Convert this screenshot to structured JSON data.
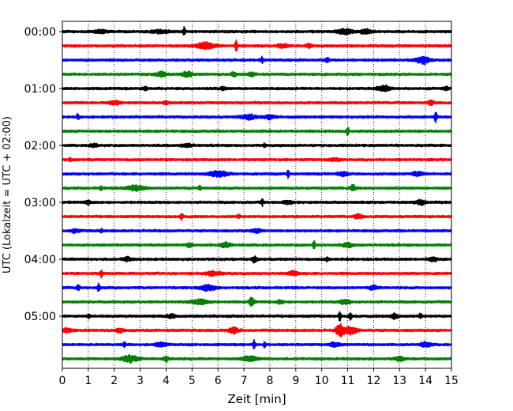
{
  "chart_data": {
    "type": "line",
    "title": "",
    "xlabel": "Zeit  [min]",
    "ylabel": "UTC (Lokalzeit = UTC + 02:00)",
    "xlim": [
      0,
      15
    ],
    "x_ticks": [
      0,
      1,
      2,
      3,
      4,
      5,
      6,
      7,
      8,
      9,
      10,
      11,
      12,
      13,
      14,
      15
    ],
    "x_tick_labels": [
      "0",
      "1",
      "2",
      "3",
      "4",
      "5",
      "6",
      "7",
      "8",
      "9",
      "10",
      "11",
      "12",
      "13",
      "14",
      "15"
    ],
    "y_tick_labels": [
      "00:00",
      "01:00",
      "02:00",
      "03:00",
      "04:00",
      "05:00"
    ],
    "y_tick_rows": [
      0,
      4,
      8,
      12,
      16,
      20
    ],
    "row_interval_minutes": 15,
    "row_count": 24,
    "colors": [
      "#000000",
      "#ff0000",
      "#0000ff",
      "#008000"
    ],
    "vertical_gridlines": "dotted",
    "legend": "none",
    "traces": [
      {
        "start": "00:00",
        "color": "#000000",
        "events": [
          [
            1.5,
            0.25,
            0.25
          ],
          [
            3.8,
            0.25,
            0.35
          ],
          [
            4.7,
            0.6,
            0.05
          ],
          [
            10.9,
            0.4,
            0.3
          ],
          [
            11.7,
            0.35,
            0.2
          ]
        ]
      },
      {
        "start": "00:15",
        "color": "#ff0000",
        "events": [
          [
            5.5,
            0.5,
            0.35
          ],
          [
            6.7,
            0.9,
            0.05
          ],
          [
            8.5,
            0.25,
            0.2
          ],
          [
            9.5,
            0.3,
            0.1
          ]
        ]
      },
      {
        "start": "00:30",
        "color": "#0000ff",
        "events": [
          [
            7.7,
            0.5,
            0.05
          ],
          [
            10.2,
            0.3,
            0.1
          ],
          [
            13.9,
            0.6,
            0.25
          ]
        ]
      },
      {
        "start": "00:45",
        "color": "#008000",
        "events": [
          [
            3.8,
            0.35,
            0.2
          ],
          [
            4.8,
            0.4,
            0.2
          ],
          [
            6.6,
            0.35,
            0.1
          ],
          [
            7.3,
            0.3,
            0.1
          ]
        ]
      },
      {
        "start": "01:00",
        "color": "#000000",
        "events": [
          [
            3.2,
            0.25,
            0.1
          ],
          [
            6.2,
            0.25,
            0.1
          ],
          [
            12.4,
            0.45,
            0.25
          ],
          [
            14.8,
            0.3,
            0.1
          ]
        ]
      },
      {
        "start": "01:15",
        "color": "#ff0000",
        "events": [
          [
            2.0,
            0.3,
            0.2
          ],
          [
            4.0,
            0.25,
            0.1
          ],
          [
            14.2,
            0.4,
            0.1
          ]
        ]
      },
      {
        "start": "01:30",
        "color": "#0000ff",
        "events": [
          [
            0.6,
            0.5,
            0.05
          ],
          [
            7.2,
            0.35,
            0.3
          ],
          [
            8.0,
            0.3,
            0.2
          ],
          [
            14.4,
            0.9,
            0.05
          ]
        ]
      },
      {
        "start": "01:45",
        "color": "#008000",
        "events": [
          [
            11.0,
            0.6,
            0.05
          ]
        ]
      },
      {
        "start": "02:00",
        "color": "#000000",
        "events": [
          [
            1.2,
            0.25,
            0.15
          ],
          [
            4.8,
            0.25,
            0.2
          ],
          [
            7.8,
            0.3,
            0.05
          ]
        ]
      },
      {
        "start": "02:15",
        "color": "#ff0000",
        "events": [
          [
            0.3,
            0.3,
            0.05
          ],
          [
            10.5,
            0.2,
            0.2
          ]
        ]
      },
      {
        "start": "02:30",
        "color": "#0000ff",
        "events": [
          [
            6.0,
            0.45,
            0.35
          ],
          [
            8.7,
            0.5,
            0.05
          ],
          [
            10.8,
            0.3,
            0.2
          ],
          [
            13.7,
            0.3,
            0.2
          ]
        ]
      },
      {
        "start": "02:45",
        "color": "#008000",
        "events": [
          [
            1.5,
            0.35,
            0.05
          ],
          [
            2.8,
            0.4,
            0.35
          ],
          [
            5.3,
            0.3,
            0.05
          ],
          [
            11.2,
            0.5,
            0.1
          ]
        ]
      },
      {
        "start": "03:00",
        "color": "#000000",
        "events": [
          [
            1.0,
            0.3,
            0.1
          ],
          [
            7.7,
            0.5,
            0.05
          ],
          [
            8.7,
            0.25,
            0.2
          ],
          [
            13.8,
            0.3,
            0.2
          ]
        ]
      },
      {
        "start": "03:15",
        "color": "#ff0000",
        "events": [
          [
            4.6,
            0.6,
            0.05
          ],
          [
            6.8,
            0.4,
            0.05
          ],
          [
            11.4,
            0.3,
            0.15
          ]
        ]
      },
      {
        "start": "03:30",
        "color": "#0000ff",
        "events": [
          [
            0.5,
            0.3,
            0.15
          ],
          [
            1.5,
            0.3,
            0.05
          ],
          [
            7.5,
            0.25,
            0.2
          ]
        ]
      },
      {
        "start": "03:45",
        "color": "#008000",
        "events": [
          [
            4.9,
            0.3,
            0.1
          ],
          [
            6.3,
            0.35,
            0.2
          ],
          [
            9.7,
            0.6,
            0.05
          ],
          [
            11.0,
            0.3,
            0.2
          ]
        ]
      },
      {
        "start": "04:00",
        "color": "#000000",
        "events": [
          [
            2.5,
            0.3,
            0.15
          ],
          [
            7.4,
            0.45,
            0.1
          ],
          [
            10.2,
            0.35,
            0.05
          ],
          [
            14.3,
            0.3,
            0.15
          ]
        ]
      },
      {
        "start": "04:15",
        "color": "#ff0000",
        "events": [
          [
            1.5,
            0.6,
            0.05
          ],
          [
            5.8,
            0.3,
            0.25
          ],
          [
            8.9,
            0.3,
            0.2
          ]
        ]
      },
      {
        "start": "04:30",
        "color": "#0000ff",
        "events": [
          [
            0.6,
            0.6,
            0.05
          ],
          [
            1.4,
            0.6,
            0.05
          ],
          [
            5.6,
            0.4,
            0.3
          ],
          [
            12.0,
            0.3,
            0.15
          ]
        ]
      },
      {
        "start": "04:45",
        "color": "#008000",
        "events": [
          [
            5.3,
            0.35,
            0.3
          ],
          [
            7.3,
            0.6,
            0.1
          ],
          [
            8.4,
            0.3,
            0.1
          ],
          [
            10.9,
            0.3,
            0.2
          ]
        ]
      },
      {
        "start": "05:00",
        "color": "#000000",
        "events": [
          [
            1.0,
            0.35,
            0.05
          ],
          [
            4.2,
            0.3,
            0.15
          ],
          [
            10.7,
            0.7,
            0.05
          ],
          [
            11.1,
            0.6,
            0.05
          ],
          [
            12.8,
            0.4,
            0.15
          ],
          [
            13.8,
            0.5,
            0.05
          ]
        ]
      },
      {
        "start": "05:15",
        "color": "#ff0000",
        "events": [
          [
            0.2,
            0.3,
            0.2
          ],
          [
            2.2,
            0.3,
            0.15
          ],
          [
            6.6,
            0.45,
            0.2
          ],
          [
            10.7,
            0.9,
            0.15
          ],
          [
            11.1,
            0.6,
            0.25
          ]
        ]
      },
      {
        "start": "05:30",
        "color": "#0000ff",
        "events": [
          [
            2.4,
            0.5,
            0.05
          ],
          [
            3.8,
            0.3,
            0.2
          ],
          [
            7.4,
            0.7,
            0.05
          ],
          [
            7.8,
            0.4,
            0.05
          ],
          [
            10.5,
            0.3,
            0.2
          ],
          [
            14.0,
            0.35,
            0.2
          ]
        ]
      },
      {
        "start": "05:45",
        "color": "#008000",
        "events": [
          [
            2.6,
            0.5,
            0.3
          ],
          [
            4.0,
            0.4,
            0.1
          ],
          [
            7.2,
            0.35,
            0.3
          ],
          [
            13.0,
            0.35,
            0.15
          ]
        ]
      }
    ]
  }
}
